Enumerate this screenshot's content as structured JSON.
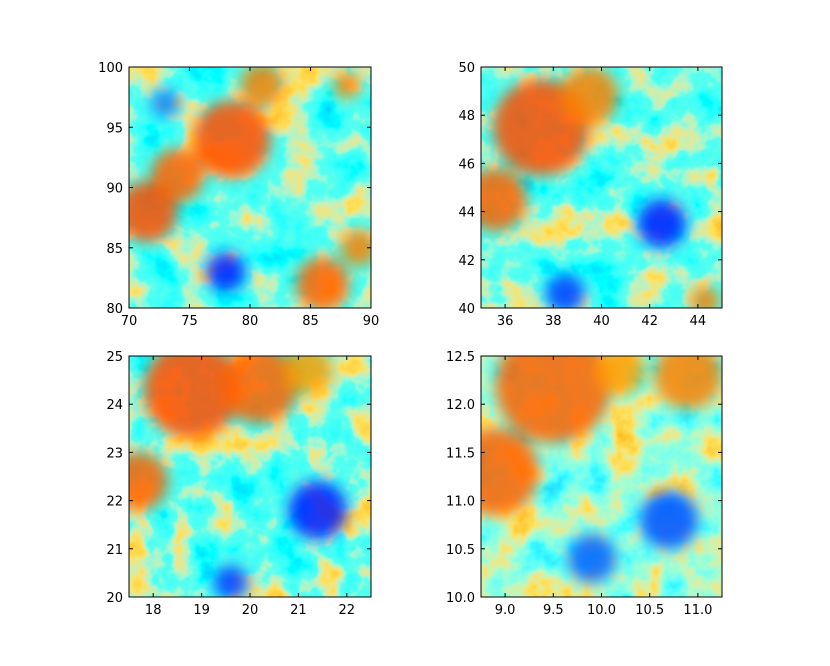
{
  "chart_data": [
    {
      "type": "heatmap",
      "colormap": "jet",
      "xlim": [
        70,
        90
      ],
      "ylim": [
        80,
        100
      ],
      "xticks": [
        {
          "value": 70,
          "label": "70"
        },
        {
          "value": 75,
          "label": "75"
        },
        {
          "value": 80,
          "label": "80"
        },
        {
          "value": 85,
          "label": "85"
        },
        {
          "value": 90,
          "label": "90"
        }
      ],
      "yticks": [
        {
          "value": 80,
          "label": "80"
        },
        {
          "value": 85,
          "label": "85"
        },
        {
          "value": 90,
          "label": "90"
        },
        {
          "value": 95,
          "label": "95"
        },
        {
          "value": 100,
          "label": "100"
        }
      ],
      "blobs": [
        {
          "x": 78.5,
          "y": 94,
          "r": 3.2,
          "v": 0.8
        },
        {
          "x": 71.5,
          "y": 88,
          "r": 2.5,
          "v": 0.8
        },
        {
          "x": 74,
          "y": 91,
          "r": 2.2,
          "v": 0.78
        },
        {
          "x": 81,
          "y": 98.5,
          "r": 1.8,
          "v": 0.75
        },
        {
          "x": 86,
          "y": 82,
          "r": 2.2,
          "v": 0.78
        },
        {
          "x": 89,
          "y": 85,
          "r": 1.5,
          "v": 0.75
        },
        {
          "x": 88,
          "y": 98.5,
          "r": 1.1,
          "v": 0.75
        },
        {
          "x": 78,
          "y": 83,
          "r": 1.6,
          "v": 0.15
        },
        {
          "x": 73,
          "y": 97,
          "r": 1.2,
          "v": 0.25
        }
      ]
    },
    {
      "type": "heatmap",
      "colormap": "jet",
      "xlim": [
        35,
        45
      ],
      "ylim": [
        40,
        50
      ],
      "xticks": [
        {
          "value": 36,
          "label": "36"
        },
        {
          "value": 38,
          "label": "38"
        },
        {
          "value": 40,
          "label": "40"
        },
        {
          "value": 42,
          "label": "42"
        },
        {
          "value": 44,
          "label": "44"
        }
      ],
      "yticks": [
        {
          "value": 40,
          "label": "40"
        },
        {
          "value": 42,
          "label": "42"
        },
        {
          "value": 44,
          "label": "44"
        },
        {
          "value": 46,
          "label": "46"
        },
        {
          "value": 48,
          "label": "48"
        },
        {
          "value": 50,
          "label": "50"
        }
      ],
      "blobs": [
        {
          "x": 37.5,
          "y": 47.5,
          "r": 2.0,
          "v": 0.8
        },
        {
          "x": 35.6,
          "y": 44.5,
          "r": 1.3,
          "v": 0.78
        },
        {
          "x": 39.5,
          "y": 48.8,
          "r": 1.2,
          "v": 0.75
        },
        {
          "x": 44.3,
          "y": 40.3,
          "r": 0.6,
          "v": 0.75
        },
        {
          "x": 42.5,
          "y": 43.5,
          "r": 1.0,
          "v": 0.15
        },
        {
          "x": 38.5,
          "y": 40.6,
          "r": 0.8,
          "v": 0.18
        }
      ]
    },
    {
      "type": "heatmap",
      "colormap": "jet",
      "xlim": [
        17.5,
        22.5
      ],
      "ylim": [
        20,
        25
      ],
      "xticks": [
        {
          "value": 18,
          "label": "18"
        },
        {
          "value": 19,
          "label": "19"
        },
        {
          "value": 20,
          "label": "20"
        },
        {
          "value": 21,
          "label": "21"
        },
        {
          "value": 22,
          "label": "22"
        }
      ],
      "yticks": [
        {
          "value": 20,
          "label": "20"
        },
        {
          "value": 21,
          "label": "21"
        },
        {
          "value": 22,
          "label": "22"
        },
        {
          "value": 23,
          "label": "23"
        },
        {
          "value": 24,
          "label": "24"
        },
        {
          "value": 25,
          "label": "25"
        }
      ],
      "blobs": [
        {
          "x": 18.8,
          "y": 24.3,
          "r": 1.0,
          "v": 0.8
        },
        {
          "x": 20.2,
          "y": 24.4,
          "r": 0.8,
          "v": 0.78
        },
        {
          "x": 17.7,
          "y": 22.4,
          "r": 0.6,
          "v": 0.78
        },
        {
          "x": 21.2,
          "y": 24.7,
          "r": 0.5,
          "v": 0.72
        },
        {
          "x": 21.4,
          "y": 21.8,
          "r": 0.6,
          "v": 0.15
        },
        {
          "x": 19.6,
          "y": 20.3,
          "r": 0.35,
          "v": 0.18
        }
      ]
    },
    {
      "type": "heatmap",
      "colormap": "jet",
      "xlim": [
        8.75,
        11.25
      ],
      "ylim": [
        10,
        12.5
      ],
      "xticks": [
        {
          "value": 9.0,
          "label": "9.0"
        },
        {
          "value": 9.5,
          "label": "9.5"
        },
        {
          "value": 10.0,
          "label": "10.0"
        },
        {
          "value": 10.5,
          "label": "10.5"
        },
        {
          "value": 11.0,
          "label": "11.0"
        }
      ],
      "yticks": [
        {
          "value": 10.0,
          "label": "10.0"
        },
        {
          "value": 10.5,
          "label": "10.5"
        },
        {
          "value": 11.0,
          "label": "11.0"
        },
        {
          "value": 11.5,
          "label": "11.5"
        },
        {
          "value": 12.0,
          "label": "12.0"
        },
        {
          "value": 12.5,
          "label": "12.5"
        }
      ],
      "blobs": [
        {
          "x": 9.5,
          "y": 12.2,
          "r": 0.6,
          "v": 0.78
        },
        {
          "x": 8.9,
          "y": 11.3,
          "r": 0.45,
          "v": 0.78
        },
        {
          "x": 10.9,
          "y": 12.3,
          "r": 0.35,
          "v": 0.75
        },
        {
          "x": 10.2,
          "y": 12.35,
          "r": 0.25,
          "v": 0.72
        },
        {
          "x": 10.7,
          "y": 10.8,
          "r": 0.3,
          "v": 0.2
        },
        {
          "x": 9.9,
          "y": 10.4,
          "r": 0.25,
          "v": 0.22
        }
      ]
    }
  ]
}
